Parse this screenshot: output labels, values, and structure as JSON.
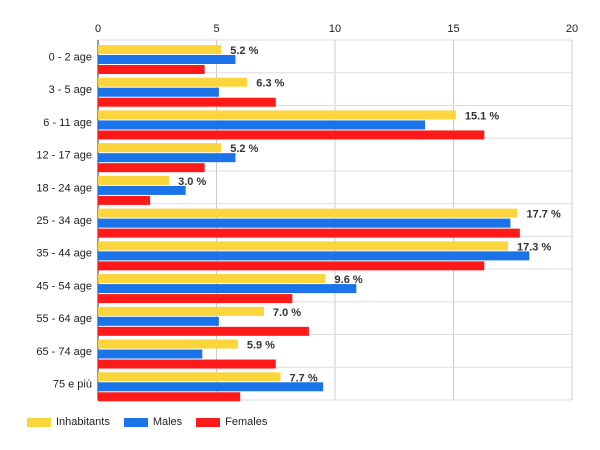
{
  "chart_data": {
    "type": "bar",
    "orientation": "horizontal",
    "title": "",
    "xlabel": "",
    "ylabel": "",
    "xlim": [
      0,
      20
    ],
    "x_ticks": [
      "0",
      "5",
      "10",
      "15",
      "20"
    ],
    "grid": true,
    "legend_position": "bottom-left",
    "categories": [
      "0 - 2 age",
      "3 - 5 age",
      "6 - 11 age",
      "12 - 17 age",
      "18 - 24 age",
      "25 - 34 age",
      "35 - 44 age",
      "45 - 54 age",
      "55 - 64 age",
      "65 - 74 age",
      "75 e più"
    ],
    "series": [
      {
        "name": "Inhabitants",
        "color": "#fbd53b",
        "values": [
          5.2,
          6.3,
          15.1,
          5.2,
          3.0,
          17.7,
          17.3,
          9.6,
          7.0,
          5.9,
          7.7
        ]
      },
      {
        "name": "Males",
        "color": "#1a73e8",
        "values": [
          5.8,
          5.1,
          13.8,
          5.8,
          3.7,
          17.4,
          18.2,
          10.9,
          5.1,
          4.4,
          9.5
        ]
      },
      {
        "name": "Females",
        "color": "#ff1a1a",
        "values": [
          4.5,
          7.5,
          16.3,
          4.5,
          2.2,
          17.8,
          16.3,
          8.2,
          8.9,
          7.5,
          6.0
        ]
      }
    ],
    "data_labels": [
      "5.2 %",
      "6.3 %",
      "15.1 %",
      "5.2 %",
      "3.0 %",
      "17.7 %",
      "17.3 %",
      "9.6 %",
      "7.0 %",
      "5.9 %",
      "7.7 %"
    ]
  }
}
